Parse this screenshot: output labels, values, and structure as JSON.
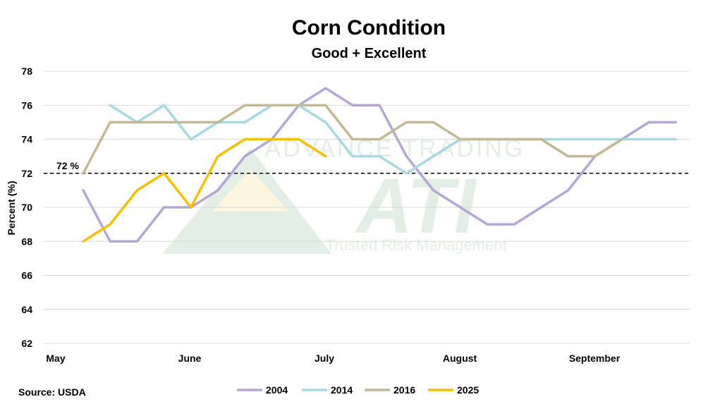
{
  "chart_data": {
    "type": "line",
    "title": "Corn Condition",
    "subtitle": "Good + Excellent",
    "ylabel": "Percent (%)",
    "xlabel": "",
    "ylim": [
      62,
      78
    ],
    "yticks": [
      62,
      64,
      66,
      68,
      70,
      72,
      74,
      76,
      78
    ],
    "month_labels": [
      "May",
      "June",
      "July",
      "August",
      "September"
    ],
    "grid": true,
    "legend_position": "bottom",
    "source": "Source: USDA",
    "watermark": "ADVANCE TRADING ATI Trusted Risk Management",
    "reference_line": {
      "value": 72,
      "label": "72 %",
      "style": "dashed"
    },
    "series": [
      {
        "name": "2004",
        "color": "#b4a7d6",
        "values": [
          71,
          68,
          68,
          70,
          70,
          71,
          73,
          74,
          76,
          77,
          76,
          76,
          73,
          71,
          70,
          69,
          69,
          70,
          71,
          73,
          74,
          75,
          75
        ]
      },
      {
        "name": "2014",
        "color": "#a8d8e0",
        "values": [
          null,
          76,
          75,
          76,
          74,
          75,
          75,
          76,
          76,
          75,
          73,
          73,
          72,
          73,
          74,
          74,
          74,
          74,
          74,
          74,
          74,
          74,
          74
        ]
      },
      {
        "name": "2016",
        "color": "#c4b896",
        "values": [
          72,
          75,
          75,
          75,
          75,
          75,
          76,
          76,
          76,
          76,
          74,
          74,
          75,
          75,
          74,
          74,
          74,
          74,
          73,
          73,
          74,
          null,
          null
        ]
      },
      {
        "name": "2025",
        "color": "#f5c000",
        "values": [
          68,
          69,
          71,
          72,
          70,
          73,
          74,
          74,
          74,
          73,
          null,
          null,
          null,
          null,
          null,
          null,
          null,
          null,
          null,
          null,
          null,
          null,
          null
        ]
      }
    ]
  }
}
